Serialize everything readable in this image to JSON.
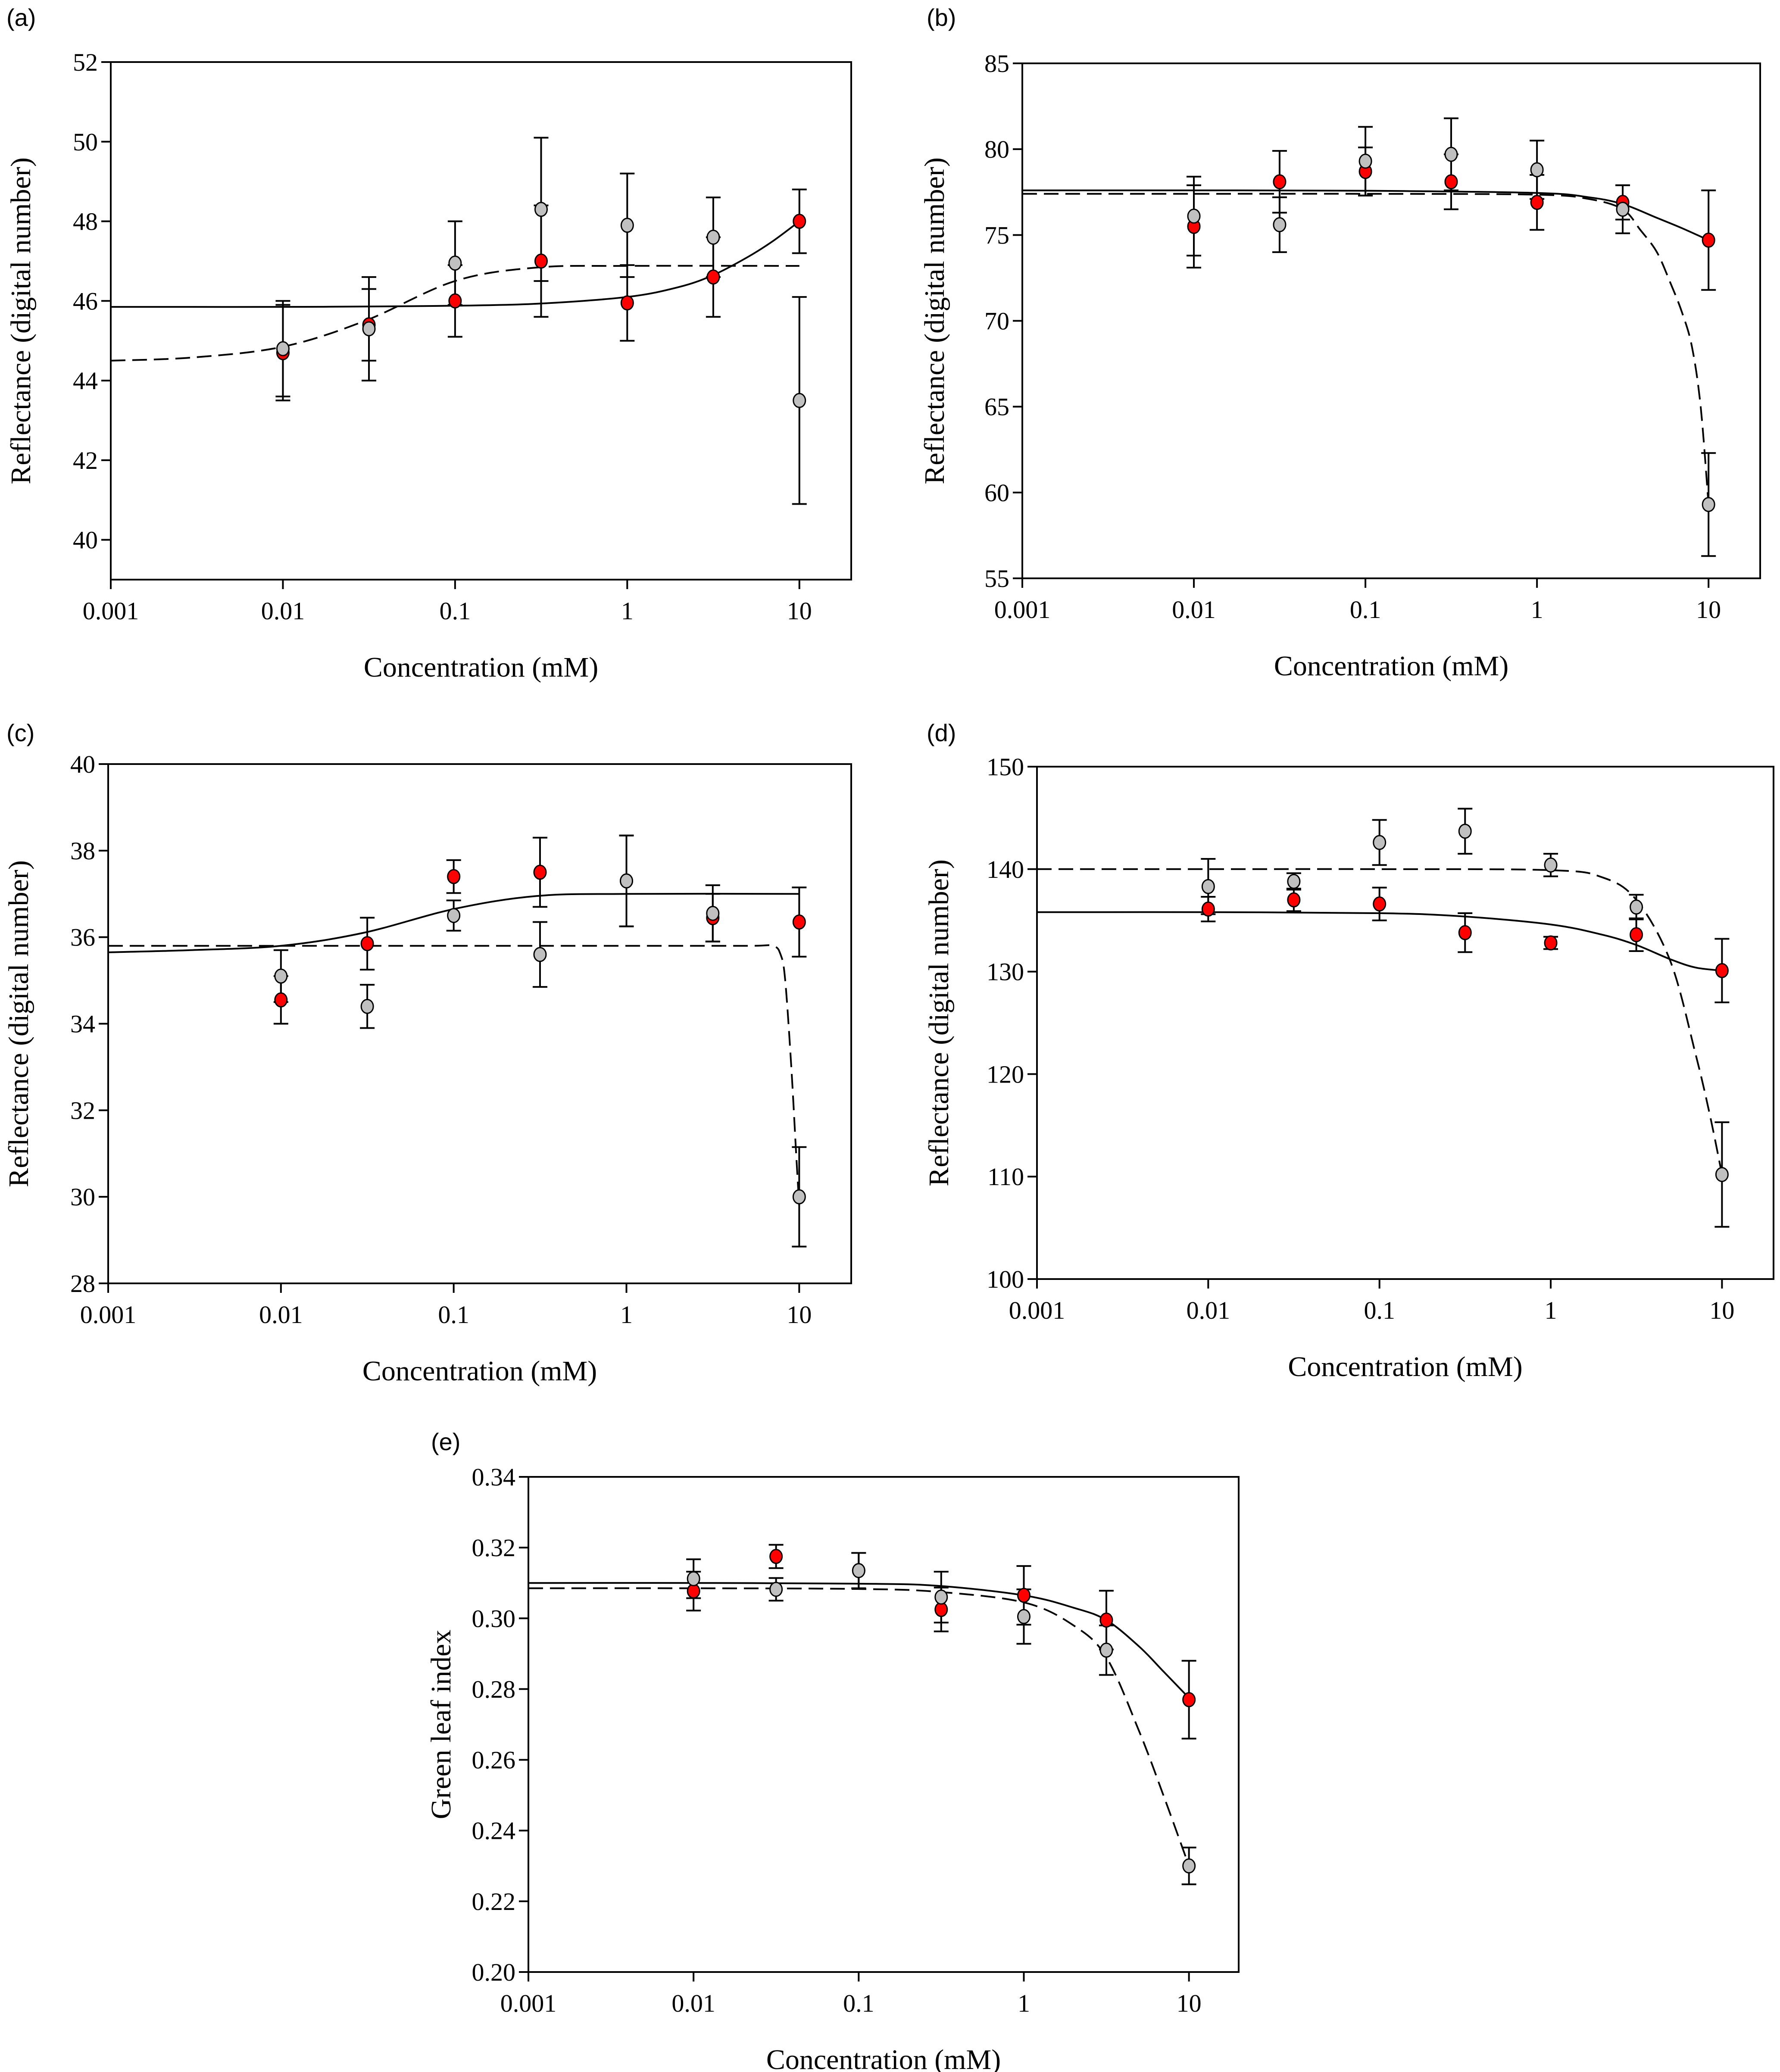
{
  "chart_data": [
    {
      "panel_label": "(a)",
      "type": "scatter",
      "xscale": "log",
      "xlabel": "Concentration (mM)",
      "ylabel": "Reflectance (digital number)",
      "xlim": [
        0.001,
        20
      ],
      "ylim": [
        39,
        52
      ],
      "xticks": [
        "0.001",
        "0.01",
        "0.1",
        "1",
        "10"
      ],
      "yticks": [
        "40",
        "42",
        "44",
        "46",
        "48",
        "50",
        "52"
      ],
      "series": [
        {
          "color": "#ff0000",
          "marker": "filled-circle",
          "x": [
            0.01,
            0.0316,
            0.1,
            0.316,
            1,
            3.16,
            10
          ],
          "y": [
            44.7,
            45.4,
            46.0,
            47.0,
            45.95,
            46.6,
            48.0
          ],
          "err": [
            1.2,
            0.9,
            0.9,
            1.4,
            0.95,
            1.0,
            0.8
          ],
          "fit": {
            "style": "solid",
            "x": [
              0.001,
              0.003,
              0.01,
              0.03,
              0.1,
              0.3,
              1,
              2,
              3.16,
              5,
              7,
              10
            ],
            "y": [
              45.85,
              45.85,
              45.85,
              45.86,
              45.88,
              45.93,
              46.1,
              46.35,
              46.65,
              47.1,
              47.5,
              48.0
            ]
          }
        },
        {
          "color": "#c0c0c0",
          "marker": "filled-circle",
          "x": [
            0.01,
            0.0316,
            0.1,
            0.316,
            1,
            3.16,
            10
          ],
          "y": [
            44.8,
            45.3,
            46.95,
            48.3,
            47.9,
            47.6,
            43.5
          ],
          "err": [
            1.2,
            1.3,
            1.05,
            1.8,
            1.3,
            1.0,
            2.6
          ],
          "fit": {
            "style": "dashed",
            "x": [
              0.001,
              0.003,
              0.01,
              0.03,
              0.1,
              0.3,
              1,
              10
            ],
            "y": [
              44.5,
              44.58,
              44.85,
              45.5,
              46.5,
              46.84,
              46.88,
              46.88
            ]
          }
        }
      ]
    },
    {
      "panel_label": "(b)",
      "type": "scatter",
      "xscale": "log",
      "xlabel": "Concentration (mM)",
      "ylabel": "Reflectance (digital number)",
      "xlim": [
        0.001,
        20
      ],
      "ylim": [
        55,
        85
      ],
      "xticks": [
        "0.001",
        "0.01",
        "0.1",
        "1",
        "10"
      ],
      "yticks": [
        "55",
        "60",
        "65",
        "70",
        "75",
        "80",
        "85"
      ],
      "series": [
        {
          "color": "#ff0000",
          "marker": "filled-circle",
          "x": [
            0.01,
            0.0316,
            0.1,
            0.316,
            1,
            3.16,
            10
          ],
          "y": [
            75.5,
            78.1,
            78.7,
            78.1,
            76.9,
            76.9,
            74.7
          ],
          "err": [
            2.4,
            1.8,
            1.4,
            1.6,
            1.6,
            1.0,
            2.9
          ],
          "fit": {
            "style": "solid",
            "x": [
              0.001,
              0.01,
              0.1,
              1,
              2,
              3.16,
              5,
              7,
              10
            ],
            "y": [
              77.6,
              77.6,
              77.58,
              77.45,
              77.2,
              76.8,
              76.0,
              75.4,
              74.7
            ]
          }
        },
        {
          "color": "#c0c0c0",
          "marker": "filled-circle",
          "x": [
            0.01,
            0.0316,
            0.1,
            0.316,
            1,
            3.16,
            10
          ],
          "y": [
            76.1,
            75.6,
            79.3,
            79.7,
            78.8,
            76.5,
            59.3
          ],
          "err": [
            2.3,
            1.6,
            2.0,
            2.1,
            1.7,
            1.4,
            3.0
          ],
          "fit": {
            "style": "dashed",
            "x": [
              0.001,
              0.01,
              0.1,
              1,
              2,
              3.16,
              4,
              5,
              6,
              7,
              8,
              9,
              10
            ],
            "y": [
              77.4,
              77.4,
              77.4,
              77.35,
              77.1,
              76.5,
              75.3,
              74.0,
              72.2,
              70.5,
              68.5,
              65.0,
              59.3
            ]
          }
        }
      ]
    },
    {
      "panel_label": "(c)",
      "type": "scatter",
      "xscale": "log",
      "xlabel": "Concentration (mM)",
      "ylabel": "Reflectance (digital number)",
      "xlim": [
        0.001,
        20
      ],
      "ylim": [
        28,
        40
      ],
      "xticks": [
        "0.001",
        "0.01",
        "0.1",
        "1",
        "10"
      ],
      "yticks": [
        "28",
        "30",
        "32",
        "34",
        "36",
        "38",
        "40"
      ],
      "series": [
        {
          "color": "#ff0000",
          "marker": "filled-circle",
          "x": [
            0.01,
            0.0316,
            0.1,
            0.316,
            1,
            3.16,
            10
          ],
          "y": [
            34.55,
            35.85,
            37.4,
            37.5,
            37.3,
            36.45,
            36.35
          ],
          "err": [
            0.55,
            0.6,
            0.38,
            0.8,
            1.05,
            0.55,
            0.8
          ],
          "fit": {
            "style": "solid",
            "x": [
              0.001,
              0.003,
              0.01,
              0.03,
              0.1,
              0.3,
              1,
              10
            ],
            "y": [
              35.65,
              35.7,
              35.8,
              36.1,
              36.65,
              36.95,
              37.0,
              37.0
            ]
          }
        },
        {
          "color": "#c0c0c0",
          "marker": "filled-circle",
          "x": [
            0.01,
            0.0316,
            0.1,
            0.316,
            1,
            3.16,
            10
          ],
          "y": [
            35.1,
            34.4,
            36.5,
            35.6,
            37.3,
            36.55,
            30.0
          ],
          "err": [
            0.6,
            0.5,
            0.35,
            0.75,
            1.05,
            0.65,
            1.15
          ],
          "fit": {
            "style": "dashed",
            "x": [
              0.001,
              0.1,
              1,
              5,
              7,
              7.8,
              8.3,
              9,
              9.6,
              10
            ],
            "y": [
              35.8,
              35.8,
              35.8,
              35.8,
              35.8,
              35.6,
              35.0,
              33.0,
              31.0,
              29.8
            ]
          }
        }
      ]
    },
    {
      "panel_label": "(d)",
      "type": "scatter",
      "xscale": "log",
      "xlabel": "Concentration (mM)",
      "ylabel": "Reflectance (digital number)",
      "xlim": [
        0.001,
        20
      ],
      "ylim": [
        100,
        150
      ],
      "xticks": [
        "0.001",
        "0.01",
        "0.1",
        "1",
        "10"
      ],
      "yticks": [
        "100",
        "110",
        "120",
        "130",
        "140",
        "150"
      ],
      "series": [
        {
          "color": "#ff0000",
          "marker": "filled-circle",
          "x": [
            0.01,
            0.0316,
            0.1,
            0.316,
            1,
            3.16,
            10
          ],
          "y": [
            136.1,
            137.0,
            136.6,
            133.8,
            132.8,
            133.6,
            130.1
          ],
          "err": [
            1.2,
            1.1,
            1.6,
            1.9,
            0.6,
            1.6,
            3.1
          ],
          "fit": {
            "style": "solid",
            "x": [
              0.001,
              0.01,
              0.1,
              0.3,
              1,
              2,
              3.16,
              5,
              7,
              10
            ],
            "y": [
              135.8,
              135.8,
              135.7,
              135.4,
              134.6,
              133.6,
              132.6,
              131.2,
              130.4,
              130.1
            ]
          }
        },
        {
          "color": "#c0c0c0",
          "marker": "filled-circle",
          "x": [
            0.01,
            0.0316,
            0.1,
            0.316,
            1,
            3.16,
            10
          ],
          "y": [
            138.3,
            138.8,
            142.6,
            143.7,
            140.4,
            136.3,
            110.2
          ],
          "err": [
            2.7,
            0.8,
            2.2,
            2.2,
            1.1,
            1.2,
            5.1
          ],
          "fit": {
            "style": "dashed",
            "x": [
              0.001,
              0.01,
              0.1,
              1,
              2,
              3.16,
              5,
              7,
              8.5,
              10
            ],
            "y": [
              140.0,
              140.0,
              140.0,
              139.9,
              139.2,
              137.0,
              131.0,
              122.0,
              116.0,
              110.2
            ]
          }
        }
      ]
    },
    {
      "panel_label": "(e)",
      "type": "scatter",
      "xscale": "log",
      "xlabel": "Concentration (mM)",
      "ylabel": "Green leaf index",
      "xlim": [
        0.001,
        20
      ],
      "ylim": [
        0.2,
        0.34
      ],
      "xticks": [
        "0.001",
        "0.01",
        "0.1",
        "1",
        "10"
      ],
      "yticks": [
        "0.20",
        "0.22",
        "0.24",
        "0.26",
        "0.28",
        "0.30",
        "0.32",
        "0.34"
      ],
      "series": [
        {
          "color": "#ff0000",
          "marker": "filled-circle",
          "x": [
            0.01,
            0.0316,
            0.1,
            0.316,
            1,
            3.16,
            10
          ],
          "y": [
            0.3077,
            0.3175,
            0.3135,
            0.3025,
            0.3065,
            0.2995,
            0.277
          ],
          "err": [
            0.0055,
            0.0033,
            0.005,
            0.0062,
            0.0083,
            0.0083,
            0.011
          ],
          "fit": {
            "style": "solid",
            "x": [
              0.001,
              0.01,
              0.1,
              0.3,
              1,
              2,
              3.16,
              5,
              7,
              10
            ],
            "y": [
              0.31,
              0.31,
              0.3098,
              0.3092,
              0.3065,
              0.303,
              0.2995,
              0.292,
              0.285,
              0.2775
            ]
          }
        },
        {
          "color": "#c0c0c0",
          "marker": "filled-circle",
          "x": [
            0.01,
            0.0316,
            0.1,
            0.316,
            1,
            3.16,
            10
          ],
          "y": [
            0.3112,
            0.3082,
            0.3135,
            0.306,
            0.3005,
            0.291,
            0.23
          ],
          "err": [
            0.0055,
            0.0032,
            0.005,
            0.0072,
            0.0077,
            0.007,
            0.0052
          ],
          "fit": {
            "style": "dashed",
            "x": [
              0.001,
              0.01,
              0.1,
              0.3,
              1,
              2,
              3.16,
              5,
              7,
              10
            ],
            "y": [
              0.3085,
              0.3085,
              0.3083,
              0.3075,
              0.3045,
              0.298,
              0.289,
              0.268,
              0.25,
              0.23
            ]
          }
        }
      ]
    }
  ]
}
